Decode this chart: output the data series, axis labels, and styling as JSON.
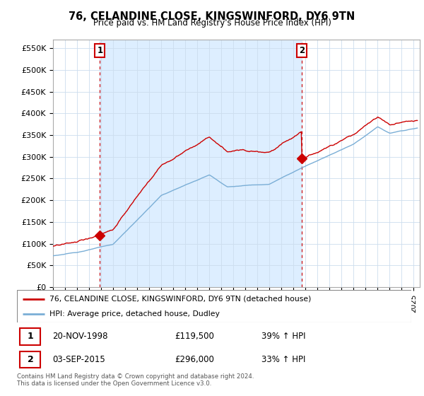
{
  "title": "76, CELANDINE CLOSE, KINGSWINFORD, DY6 9TN",
  "subtitle": "Price paid vs. HM Land Registry's House Price Index (HPI)",
  "ylabel_ticks": [
    "£0",
    "£50K",
    "£100K",
    "£150K",
    "£200K",
    "£250K",
    "£300K",
    "£350K",
    "£400K",
    "£450K",
    "£500K",
    "£550K"
  ],
  "ytick_values": [
    0,
    50000,
    100000,
    150000,
    200000,
    250000,
    300000,
    350000,
    400000,
    450000,
    500000,
    550000
  ],
  "xlim_start": 1995.0,
  "xlim_end": 2025.5,
  "ylim_min": 0,
  "ylim_max": 570000,
  "sale1_year": 1998.9,
  "sale1_price": 119500,
  "sale2_year": 2015.67,
  "sale2_price": 296000,
  "red_line_color": "#cc0000",
  "blue_line_color": "#7aaed6",
  "marker_color": "#cc0000",
  "shading_color": "#ddeeff",
  "legend_label_red": "76, CELANDINE CLOSE, KINGSWINFORD, DY6 9TN (detached house)",
  "legend_label_blue": "HPI: Average price, detached house, Dudley",
  "table_row1": [
    "1",
    "20-NOV-1998",
    "£119,500",
    "39% ↑ HPI"
  ],
  "table_row2": [
    "2",
    "03-SEP-2015",
    "£296,000",
    "33% ↑ HPI"
  ],
  "footnote": "Contains HM Land Registry data © Crown copyright and database right 2024.\nThis data is licensed under the Open Government Licence v3.0.",
  "box_color": "#cc0000",
  "background_color": "#ffffff",
  "grid_color": "#ccddee"
}
